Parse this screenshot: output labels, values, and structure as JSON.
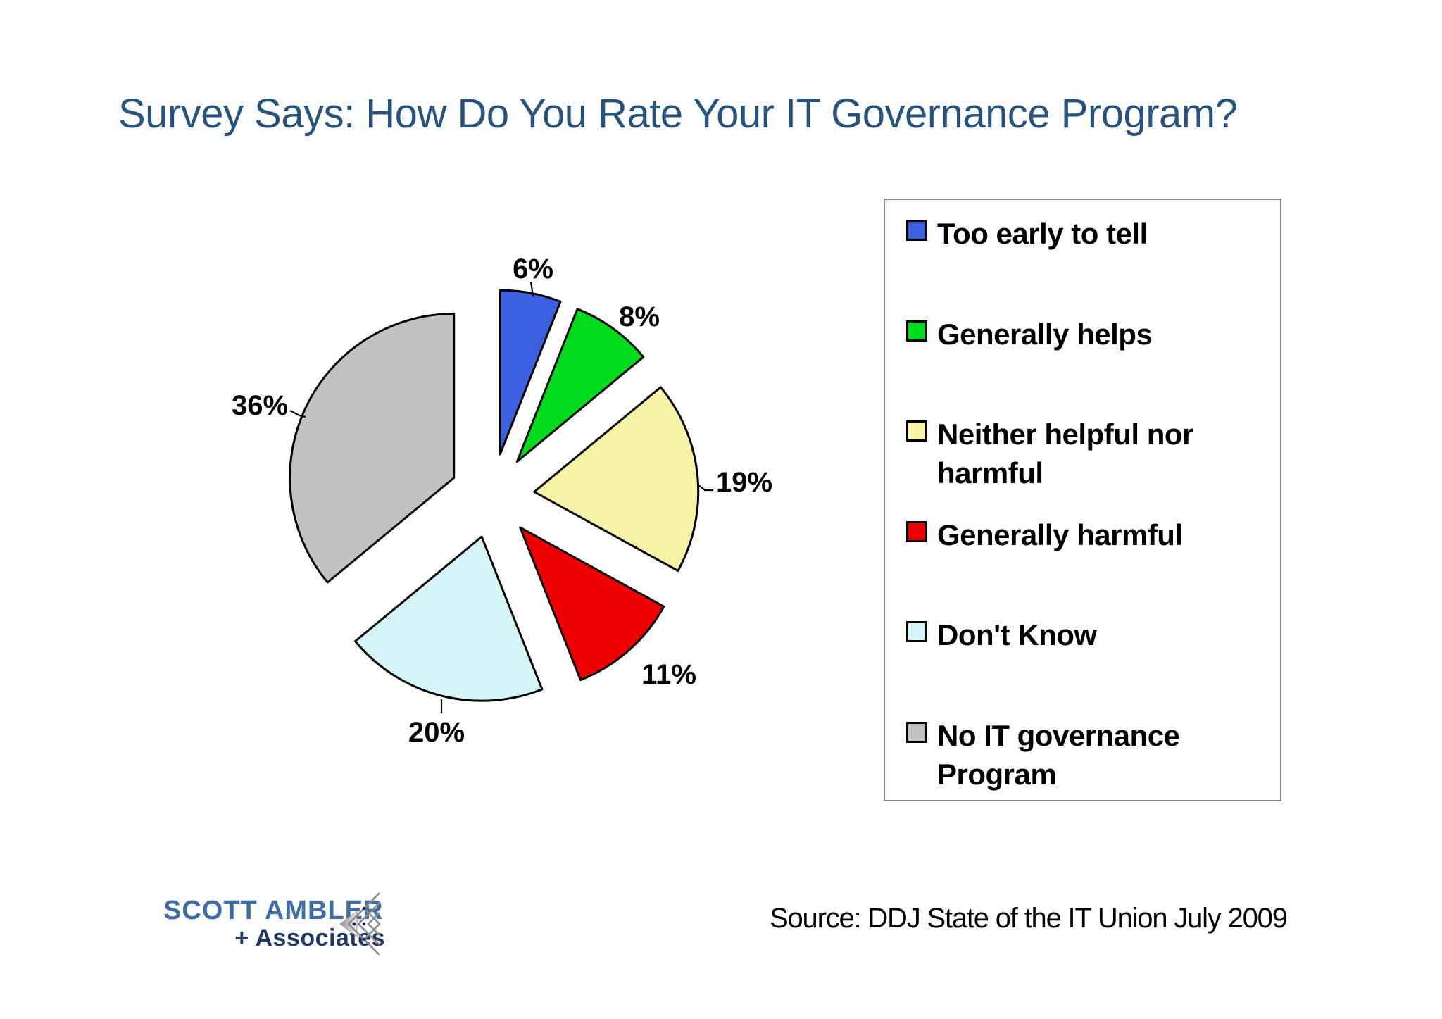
{
  "title": "Survey Says: How Do You Rate Your IT Governance Program?",
  "chart_data": {
    "type": "pie",
    "title": "Survey Says: How Do You Rate Your IT Governance Program?",
    "categories": [
      "Too early to tell",
      "Generally helps",
      "Neither helpful nor harmful",
      "Generally harmful",
      "Don't Know",
      "No IT governance Program"
    ],
    "values": [
      6,
      8,
      19,
      11,
      20,
      36
    ],
    "labels": [
      "6%",
      "8%",
      "19%",
      "11%",
      "20%",
      "36%"
    ],
    "colors": [
      "#3A5FDF",
      "#00DB1C",
      "#F6F2A6",
      "#EE0000",
      "#D4F4F5",
      "#C1C1C1"
    ],
    "start_angle_deg": 0,
    "direction": "clockwise",
    "exploded": true,
    "legend_position": "right"
  },
  "legend": {
    "items": [
      {
        "label": "Too early to tell",
        "color": "#3A5FDF"
      },
      {
        "label": "Generally helps",
        "color": "#00DB1C"
      },
      {
        "label": "Neither helpful nor\nharmful",
        "color": "#F6F2A6"
      },
      {
        "label": "Generally harmful",
        "color": "#EE0000"
      },
      {
        "label": "Don't Know",
        "color": "#D4F4F5"
      },
      {
        "label": "No IT governance\nProgram",
        "color": "#C1C1C1"
      }
    ]
  },
  "source": {
    "text": "Source: DDJ State of the IT Union July 2009"
  },
  "logo": {
    "line1": "SCOTT AMBLER",
    "plus": "+",
    "line2": "Associates"
  }
}
